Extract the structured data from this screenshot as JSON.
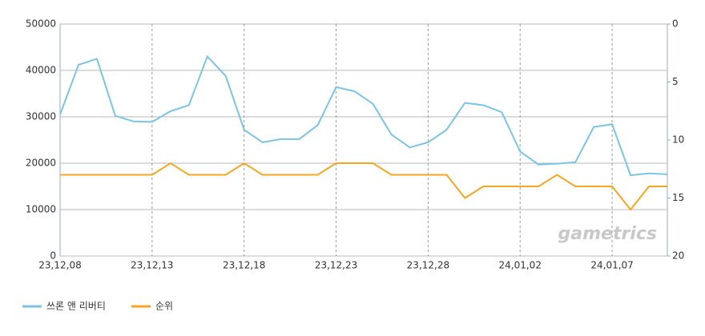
{
  "chart_data": {
    "type": "line",
    "categories": [
      "23,12,08",
      null,
      null,
      null,
      null,
      "23,12,13",
      null,
      null,
      null,
      null,
      "23,12,18",
      null,
      null,
      null,
      null,
      "23,12,23",
      null,
      null,
      null,
      null,
      "23,12,28",
      null,
      null,
      null,
      null,
      "24,01,02",
      null,
      null,
      null,
      null,
      "24,01,07",
      null,
      null,
      null
    ],
    "series": [
      {
        "name": "쓰론 앤 리버티",
        "color": "#7cc4e6",
        "axis": "y",
        "values": [
          30500,
          41200,
          42500,
          30200,
          29000,
          28900,
          31200,
          32500,
          43000,
          38800,
          27200,
          24500,
          25200,
          25200,
          28200,
          36400,
          35500,
          32800,
          26200,
          23400,
          24500,
          27200,
          33000,
          32500,
          31000,
          22500,
          19700,
          19900,
          20200,
          27800,
          28400,
          17400,
          17800,
          17600
        ]
      },
      {
        "name": "순위",
        "color": "#f5a623",
        "axis": "y2",
        "values": [
          13,
          13,
          13,
          13,
          13,
          13,
          12,
          13,
          13,
          13,
          12,
          13,
          13,
          13,
          13,
          12,
          12,
          12,
          13,
          13,
          13,
          13,
          15,
          14,
          14,
          14,
          14,
          13,
          14,
          14,
          14,
          16,
          14,
          14
        ]
      }
    ],
    "ylim": [
      0,
      50000
    ],
    "yticks": [
      0,
      10000,
      20000,
      30000,
      40000,
      50000
    ],
    "y2lim": [
      20,
      0
    ],
    "y2ticks": [
      0,
      5,
      10,
      15,
      20
    ],
    "grid": true,
    "legend": "bottom-left",
    "watermark": "gametrics"
  }
}
